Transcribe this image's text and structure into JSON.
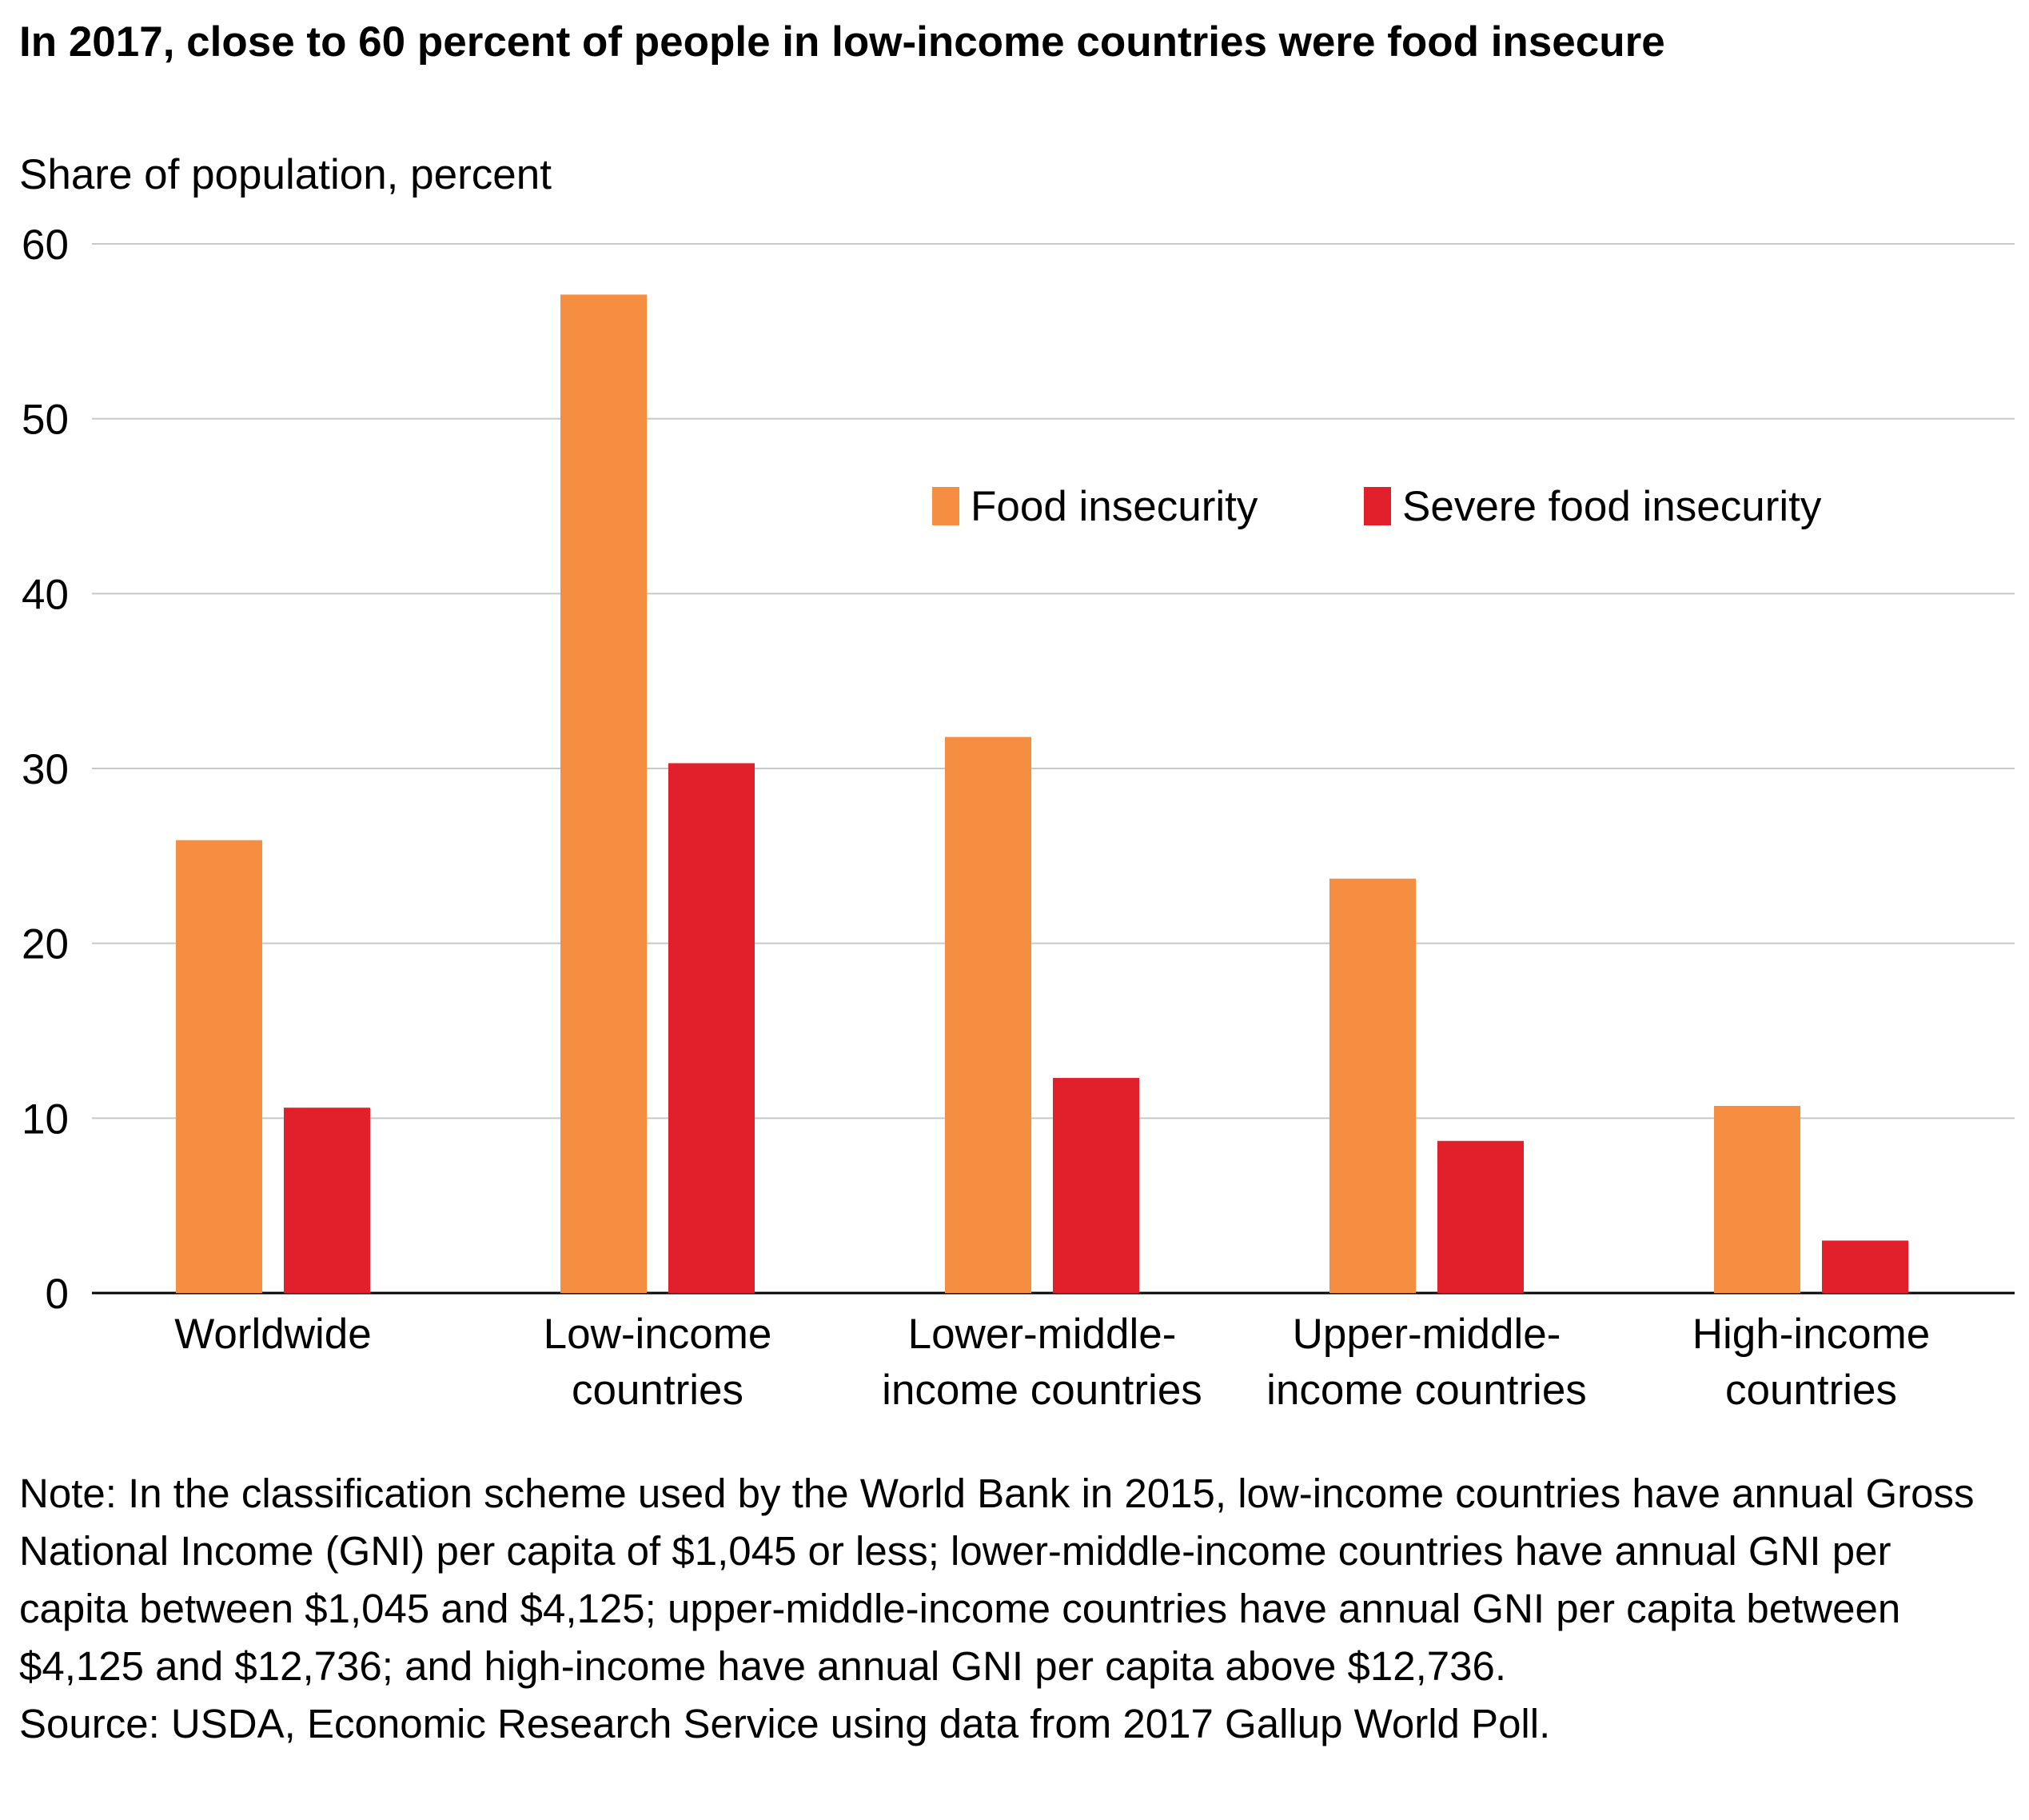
{
  "title": "In 2017, close to 60 percent of people in low-income countries were food insecure",
  "note": "Note: In the classification scheme used by the World Bank in 2015, low-income countries have annual Gross National Income (GNI) per capita of $1,045 or less; lower-middle-income countries have annual GNI per capita between $1,045 and $4,125; upper-middle-income countries have annual GNI per capita between $4,125 and $12,736; and high-income have annual GNI per capita above $12,736.",
  "source": "Source: USDA, Economic Research Service using data from 2017 Gallup World Poll.",
  "chart_data": {
    "type": "bar",
    "ylabel": "Share of population, percent",
    "xlabel": "",
    "ylim": [
      0,
      60
    ],
    "yticks": [
      0,
      10,
      20,
      30,
      40,
      50,
      60
    ],
    "grid": true,
    "legend_position": "top-right",
    "categories": [
      [
        "Worldwide"
      ],
      [
        "Low-income",
        "countries"
      ],
      [
        "Lower-middle-",
        "income countries"
      ],
      [
        "Upper-middle-",
        "income countries"
      ],
      [
        "High-income",
        "countries"
      ]
    ],
    "series": [
      {
        "name": "Food insecurity",
        "color": "#F68E42",
        "values": [
          25.9,
          57.1,
          31.8,
          23.7,
          10.7
        ]
      },
      {
        "name": "Severe food insecurity",
        "color": "#E1202B",
        "values": [
          10.6,
          30.3,
          12.3,
          8.7,
          3.0
        ]
      }
    ]
  }
}
